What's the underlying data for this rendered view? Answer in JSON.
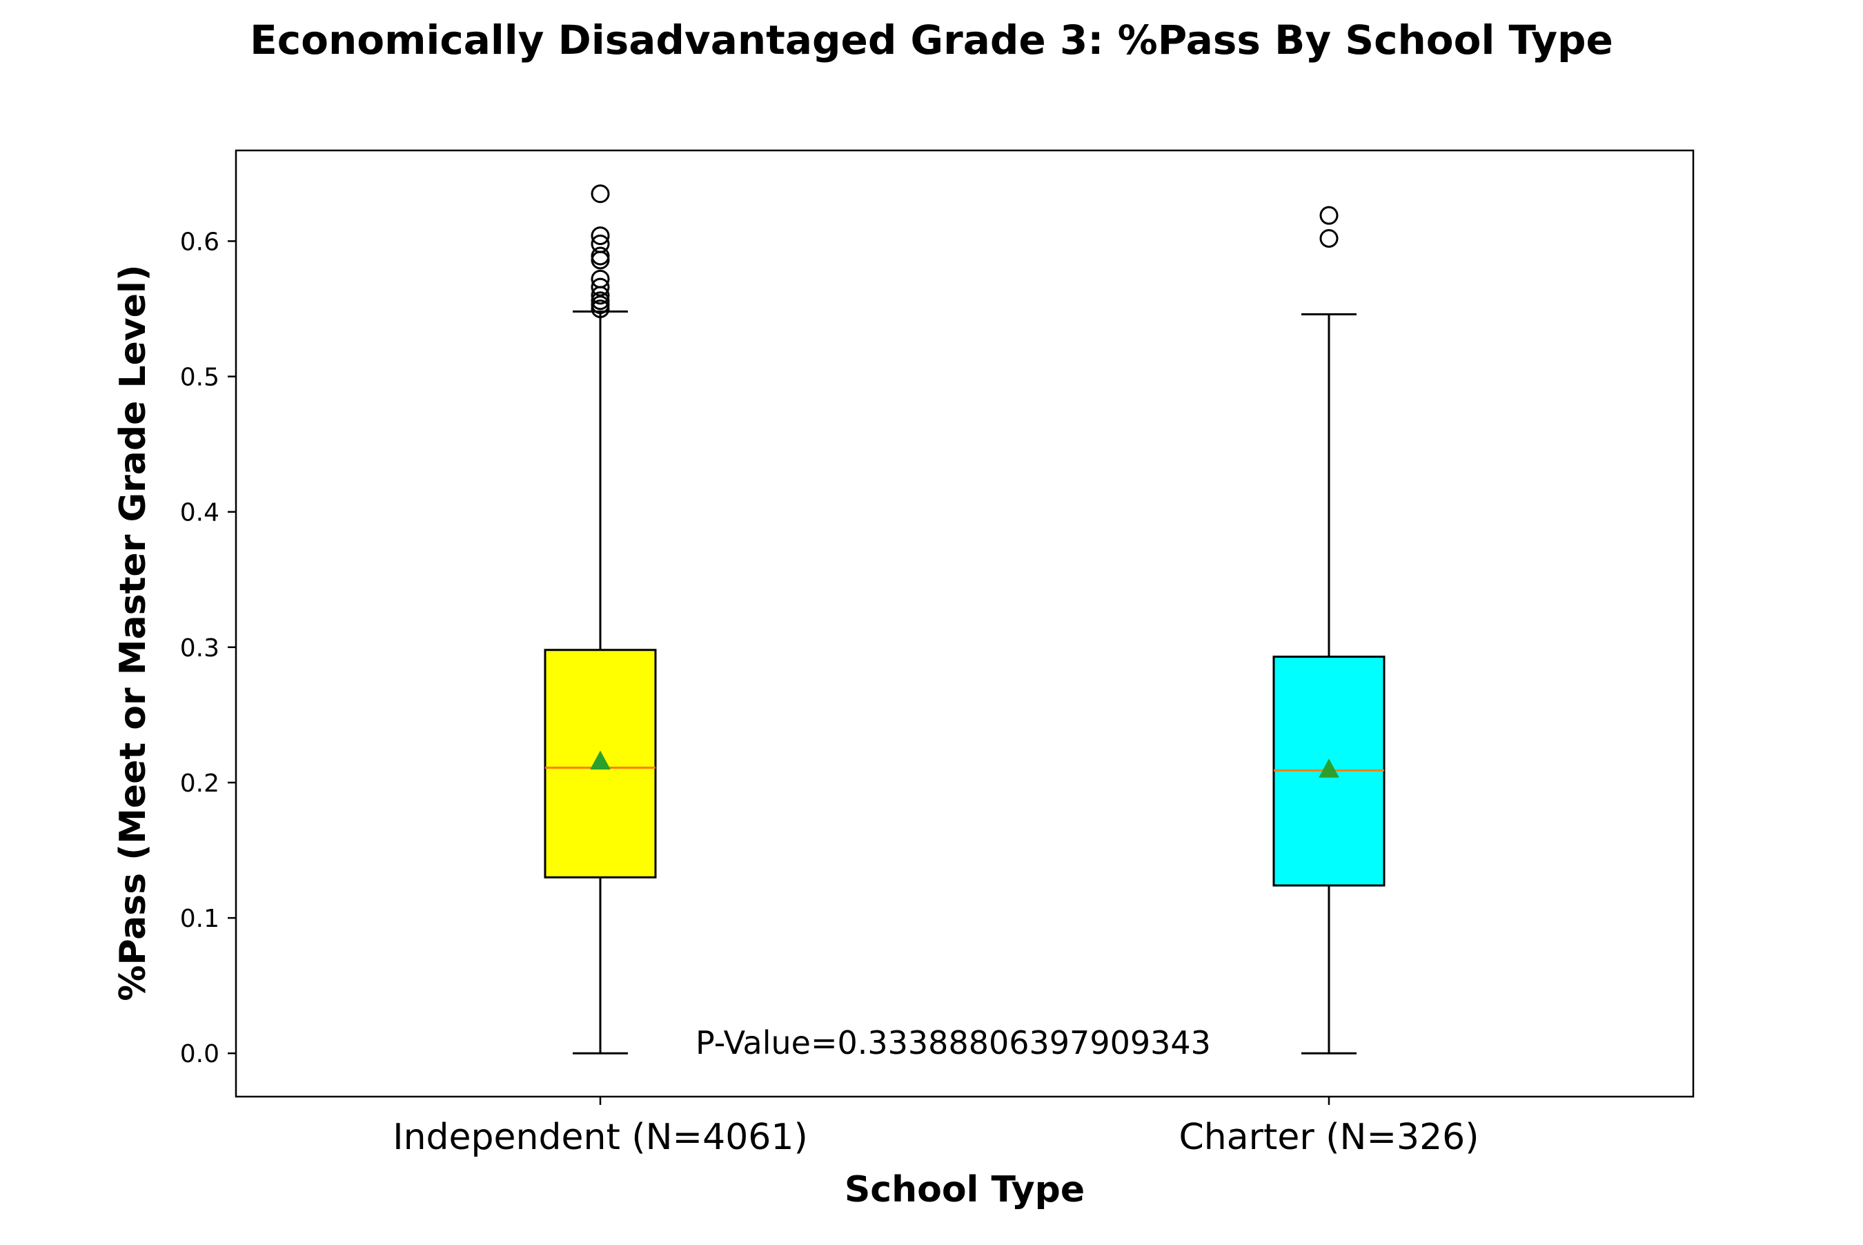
{
  "chart_data": {
    "type": "box",
    "title": "Economically Disadvantaged Grade 3: %Pass By School Type",
    "xlabel": "School Type",
    "ylabel": "%Pass (Meet or Master Grade Level)",
    "ylim": [
      -0.032,
      0.667
    ],
    "yticks": [
      0.0,
      0.1,
      0.2,
      0.3,
      0.4,
      0.5,
      0.6
    ],
    "ytick_labels": [
      "0.0",
      "0.1",
      "0.2",
      "0.3",
      "0.4",
      "0.5",
      "0.6"
    ],
    "grid": false,
    "legend": "none",
    "categories": [
      "Independent (N=4061)",
      "Charter (N=326)"
    ],
    "boxes": [
      {
        "category": "Independent (N=4061)",
        "color": "#ffff00",
        "whisker_low": 0.0,
        "q1": 0.13,
        "median": 0.211,
        "q3": 0.298,
        "whisker_high": 0.548,
        "mean": 0.216,
        "outliers": [
          0.55,
          0.553,
          0.556,
          0.56,
          0.566,
          0.572,
          0.586,
          0.589,
          0.598,
          0.604,
          0.635
        ]
      },
      {
        "category": "Charter (N=326)",
        "color": "#00ffff",
        "whisker_low": 0.0,
        "q1": 0.124,
        "median": 0.209,
        "q3": 0.293,
        "whisker_high": 0.546,
        "mean": 0.21,
        "outliers": [
          0.602,
          0.619
        ]
      }
    ],
    "median_color": "#ff7f0e",
    "mean_marker_color": "#2ca02c",
    "annotation": "P-Value=0.33388806397909343"
  }
}
